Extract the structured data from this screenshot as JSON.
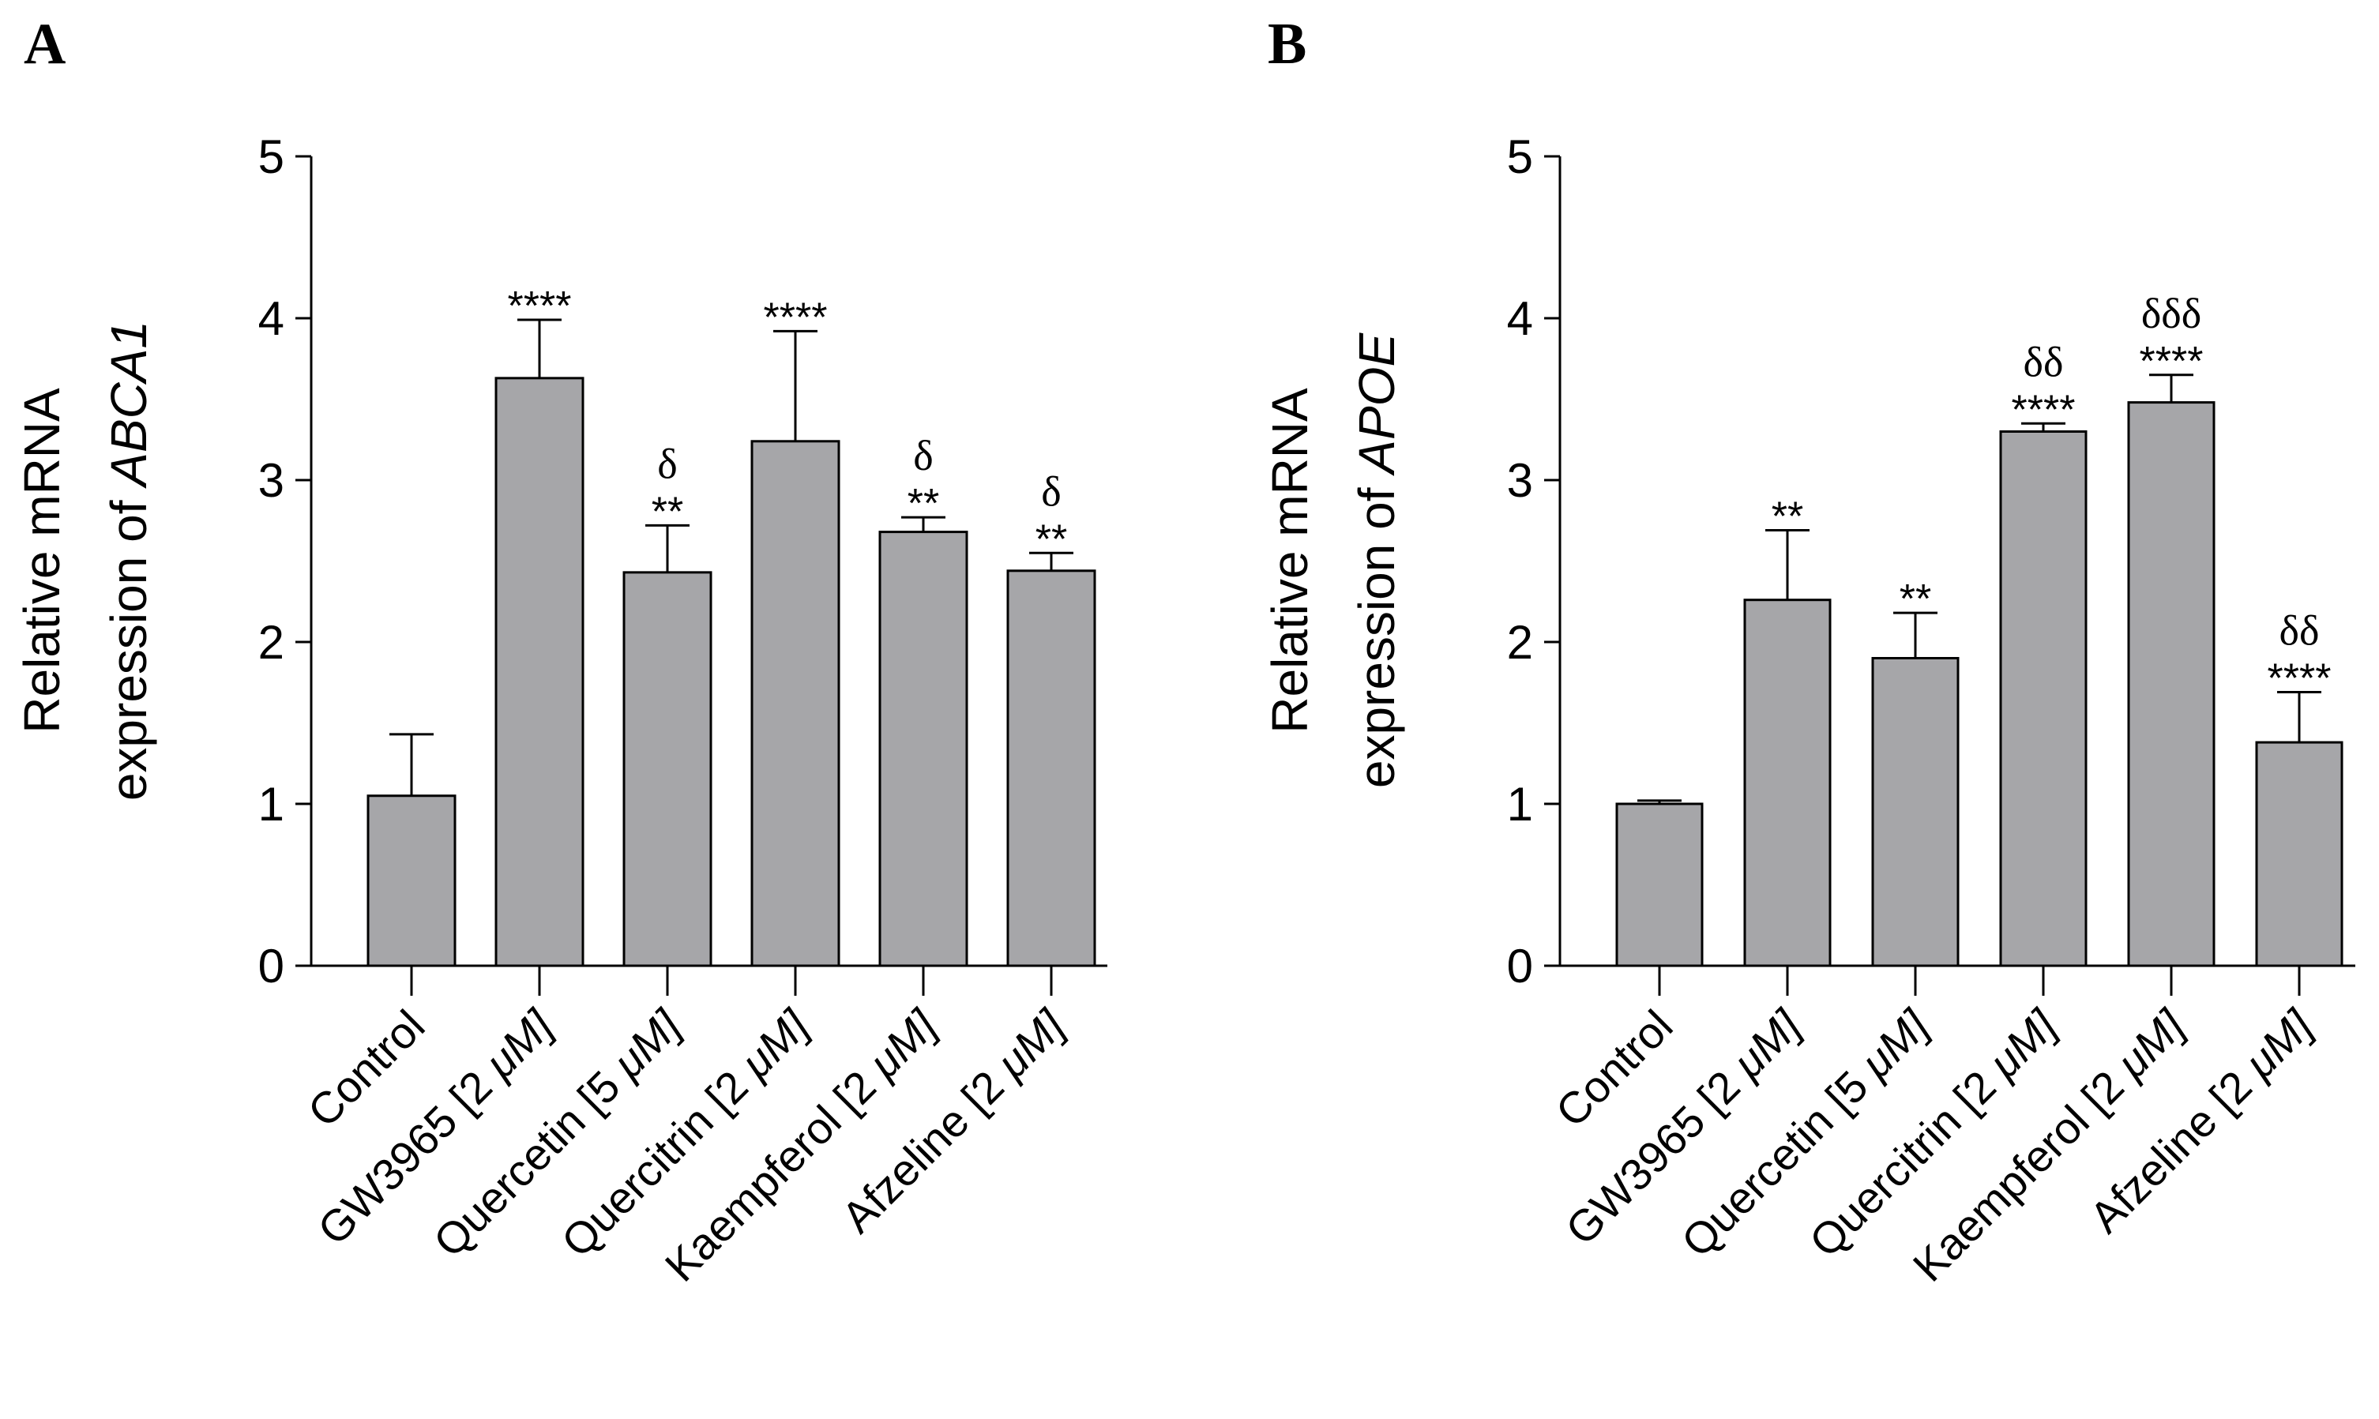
{
  "figure": {
    "panels": [
      {
        "letter": "A"
      },
      {
        "letter": "B"
      }
    ]
  },
  "chart_data": [
    {
      "type": "bar",
      "panel": "A",
      "title": "",
      "xlabel": "",
      "ylabel_prefix": "Relative mRNA",
      "ylabel_line2": "expression of ",
      "ylabel_gene": "ABCA1",
      "ylim": [
        0,
        5
      ],
      "yticks": [
        0,
        1,
        2,
        3,
        4,
        5
      ],
      "categories": [
        {
          "name": "Control",
          "conc": ""
        },
        {
          "name": "GW3965 [2 ",
          "conc": "μM]"
        },
        {
          "name": "Quercetin [5 ",
          "conc": "μM]"
        },
        {
          "name": "Quercitrin [2 ",
          "conc": "μM]"
        },
        {
          "name": "Kaempferol [2 ",
          "conc": "μM]"
        },
        {
          "name": "Afzeline [2 ",
          "conc": "μM]"
        }
      ],
      "values": [
        1.05,
        3.63,
        2.43,
        3.24,
        2.68,
        2.44
      ],
      "errors": [
        0.38,
        0.36,
        0.29,
        0.68,
        0.09,
        0.11
      ],
      "stars": [
        "",
        "****",
        "**",
        "****",
        "**",
        "**"
      ],
      "deltas": [
        "",
        "",
        "δ",
        "",
        "δ",
        "δ"
      ]
    },
    {
      "type": "bar",
      "panel": "B",
      "title": "",
      "xlabel": "",
      "ylabel_prefix": "Relative mRNA",
      "ylabel_line2": "expression of ",
      "ylabel_gene": "APOE",
      "ylim": [
        0,
        5
      ],
      "yticks": [
        0,
        1,
        2,
        3,
        4,
        5
      ],
      "categories": [
        {
          "name": "Control",
          "conc": ""
        },
        {
          "name": "GW3965 [2 ",
          "conc": "μM]"
        },
        {
          "name": "Quercetin [5 ",
          "conc": "μM]"
        },
        {
          "name": "Quercitrin [2 ",
          "conc": "μM]"
        },
        {
          "name": "Kaempferol [2 ",
          "conc": "μM]"
        },
        {
          "name": "Afzeline [2 ",
          "conc": "μM]"
        }
      ],
      "values": [
        1.0,
        2.26,
        1.9,
        3.3,
        3.48,
        1.38
      ],
      "errors": [
        0.02,
        0.43,
        0.28,
        0.05,
        0.17,
        0.31
      ],
      "stars": [
        "",
        "**",
        "**",
        "****",
        "****",
        "****"
      ],
      "deltas": [
        "",
        "",
        "",
        "δδ",
        "δδδ",
        "δδ"
      ]
    }
  ]
}
